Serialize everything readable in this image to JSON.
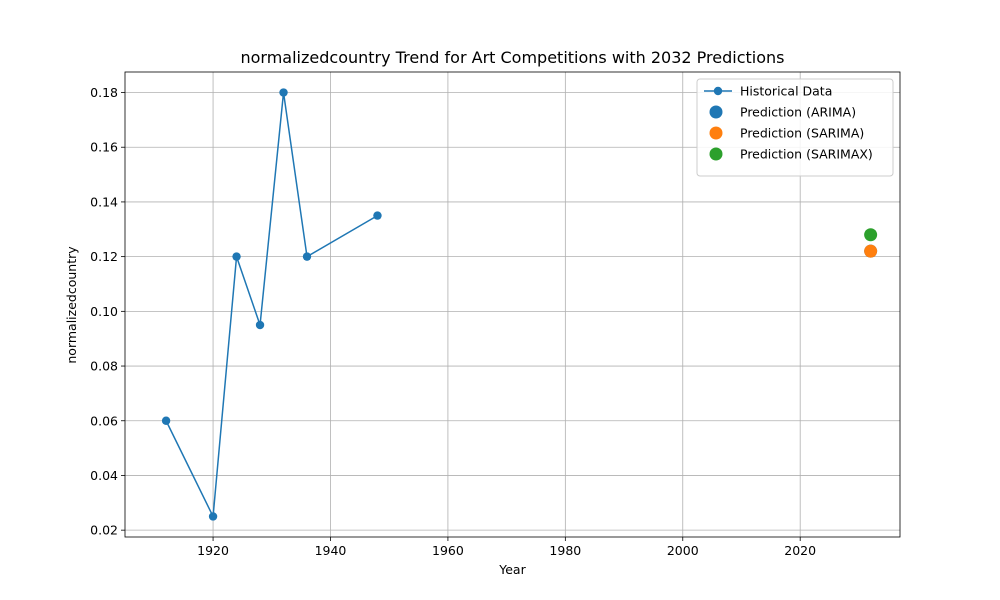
{
  "chart_data": {
    "type": "line",
    "title": "normalizedcountry Trend for Art Competitions with 2032 Predictions",
    "xlabel": "Year",
    "ylabel": "normalizedcountry",
    "xlim": [
      1905,
      2037
    ],
    "ylim": [
      0.0175,
      0.1875
    ],
    "grid": true,
    "legend_position": "top-right",
    "x_ticks": [
      {
        "value": 1920,
        "label": "1920"
      },
      {
        "value": 1940,
        "label": "1940"
      },
      {
        "value": 1960,
        "label": "1960"
      },
      {
        "value": 1980,
        "label": "1980"
      },
      {
        "value": 2000,
        "label": "2000"
      },
      {
        "value": 2020,
        "label": "2020"
      }
    ],
    "y_ticks": [
      {
        "value": 0.02,
        "label": "0.02"
      },
      {
        "value": 0.04,
        "label": "0.04"
      },
      {
        "value": 0.06,
        "label": "0.06"
      },
      {
        "value": 0.08,
        "label": "0.08"
      },
      {
        "value": 0.1,
        "label": "0.10"
      },
      {
        "value": 0.12,
        "label": "0.12"
      },
      {
        "value": 0.14,
        "label": "0.14"
      },
      {
        "value": 0.16,
        "label": "0.16"
      },
      {
        "value": 0.18,
        "label": "0.18"
      }
    ],
    "series": [
      {
        "name": "Historical Data",
        "kind": "line-marker",
        "color": "#1f77b4",
        "x": [
          1912,
          1920,
          1924,
          1928,
          1932,
          1936,
          1948
        ],
        "y": [
          0.06,
          0.025,
          0.12,
          0.095,
          0.18,
          0.12,
          0.135
        ]
      },
      {
        "name": "Prediction (ARIMA)",
        "kind": "point",
        "color": "#1f77b4",
        "x": [
          2032
        ],
        "y": [
          0.122
        ]
      },
      {
        "name": "Prediction (SARIMA)",
        "kind": "point",
        "color": "#ff7f0e",
        "x": [
          2032
        ],
        "y": [
          0.122
        ]
      },
      {
        "name": "Prediction (SARIMAX)",
        "kind": "point",
        "color": "#2ca02c",
        "x": [
          2032
        ],
        "y": [
          0.128
        ]
      }
    ]
  }
}
